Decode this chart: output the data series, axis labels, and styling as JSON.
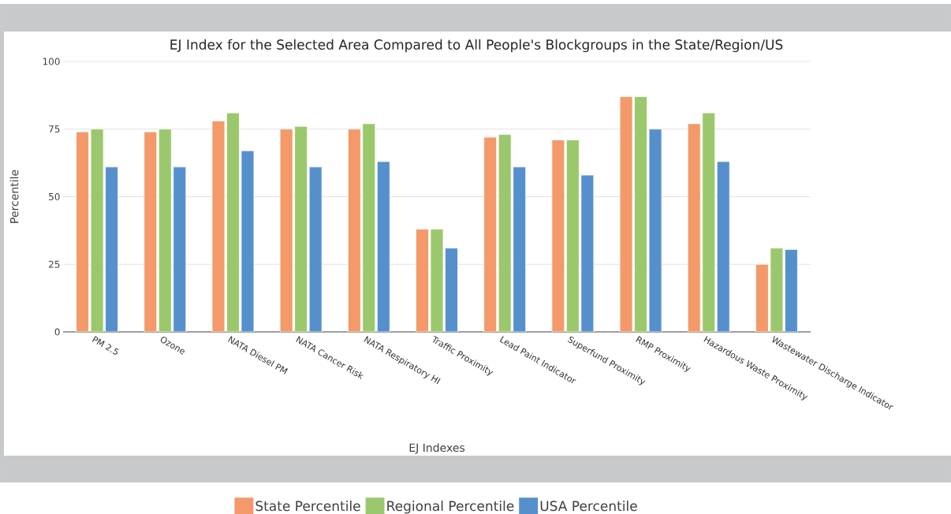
{
  "chart_data": {
    "type": "bar",
    "title": "EJ Index for the Selected Area Compared to All People's Blockgroups in the State/Region/US",
    "xlabel": "EJ Indexes",
    "ylabel": "Percentile",
    "categories": [
      "PM 2.5",
      "Ozone",
      "NATA Diesel PM",
      "NATA Cancer Risk",
      "NATA Respiratory HI",
      "Traffic Proximity",
      "Lead Paint Indicator",
      "Superfund Proximity",
      "RMP Proximity",
      "Hazardous Waste Proximity",
      "Wastewater Discharge Indicator"
    ],
    "series": [
      {
        "name": "State Percentile",
        "color": "#f4996a",
        "values": [
          74,
          74,
          78,
          75,
          75,
          38,
          72,
          71,
          87,
          77,
          25
        ]
      },
      {
        "name": "Regional Percentile",
        "color": "#9bc86c",
        "values": [
          75,
          75,
          81,
          76,
          77,
          38,
          73,
          71,
          87,
          81,
          31
        ]
      },
      {
        "name": "USA Percentile",
        "color": "#5590cd",
        "values": [
          61,
          61,
          67,
          61,
          63,
          31,
          61,
          58,
          75,
          63,
          30.5
        ]
      }
    ],
    "ylim": [
      0,
      100
    ],
    "yticks": [
      0,
      25,
      50,
      75,
      100
    ],
    "grid": "y",
    "legend": "bottom"
  }
}
